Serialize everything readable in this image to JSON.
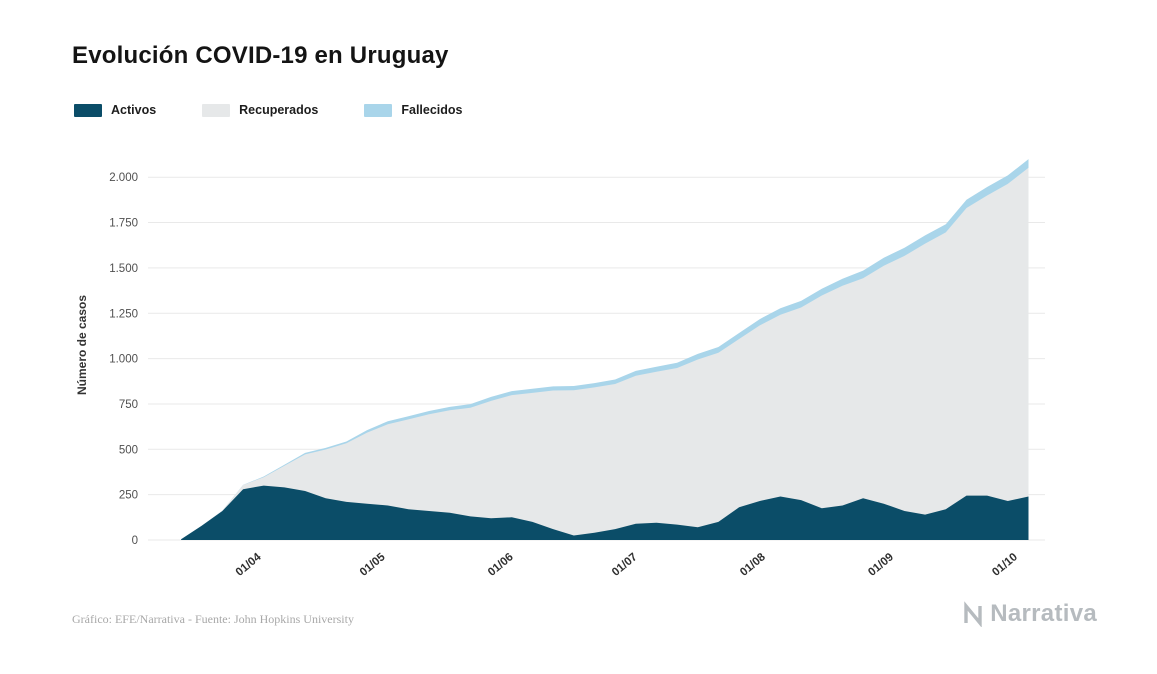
{
  "title": "Evolución COVID-19 en Uruguay",
  "footer": {
    "credit": "Gráfico: EFE/Narrativa - Fuente: John Hopkins University",
    "logo_text": "Narrativa"
  },
  "chart_data": {
    "type": "area",
    "stacked": true,
    "title": "Evolución COVID-19 en Uruguay",
    "xlabel": "",
    "ylabel": "Número de casos",
    "legend_position": "top-left",
    "grid": "horizontal",
    "y_max": 2150,
    "x_domain": [
      "2020-03-05",
      "2020-10-08"
    ],
    "y_ticks": [
      {
        "value": 0,
        "label": "0"
      },
      {
        "value": 250,
        "label": "250"
      },
      {
        "value": 500,
        "label": "500"
      },
      {
        "value": 750,
        "label": "750"
      },
      {
        "value": 1000,
        "label": "1.000"
      },
      {
        "value": 1250,
        "label": "1.250"
      },
      {
        "value": 1500,
        "label": "1.500"
      },
      {
        "value": 1750,
        "label": "1.750"
      },
      {
        "value": 2000,
        "label": "2.000"
      }
    ],
    "x_ticks": [
      {
        "date": "2020-04-01",
        "label": "01/04"
      },
      {
        "date": "2020-05-01",
        "label": "01/05"
      },
      {
        "date": "2020-06-01",
        "label": "01/06"
      },
      {
        "date": "2020-07-01",
        "label": "01/07"
      },
      {
        "date": "2020-08-01",
        "label": "01/08"
      },
      {
        "date": "2020-09-01",
        "label": "01/09"
      },
      {
        "date": "2020-10-01",
        "label": "01/10"
      }
    ],
    "dates": [
      "2020-03-13",
      "2020-03-18",
      "2020-03-23",
      "2020-03-28",
      "2020-04-02",
      "2020-04-07",
      "2020-04-12",
      "2020-04-17",
      "2020-04-22",
      "2020-04-27",
      "2020-05-02",
      "2020-05-07",
      "2020-05-12",
      "2020-05-17",
      "2020-05-22",
      "2020-05-27",
      "2020-06-01",
      "2020-06-06",
      "2020-06-11",
      "2020-06-16",
      "2020-06-21",
      "2020-06-26",
      "2020-07-01",
      "2020-07-06",
      "2020-07-11",
      "2020-07-16",
      "2020-07-21",
      "2020-07-26",
      "2020-07-31",
      "2020-08-05",
      "2020-08-10",
      "2020-08-15",
      "2020-08-20",
      "2020-08-25",
      "2020-08-30",
      "2020-09-04",
      "2020-09-09",
      "2020-09-14",
      "2020-09-19",
      "2020-09-24",
      "2020-09-29",
      "2020-10-04"
    ],
    "series": [
      {
        "name": "Activos",
        "color": "#0b4d68",
        "values": [
          4,
          79,
          160,
          280,
          300,
          290,
          270,
          230,
          210,
          200,
          190,
          170,
          160,
          150,
          130,
          120,
          125,
          100,
          60,
          25,
          40,
          60,
          90,
          95,
          85,
          70,
          100,
          180,
          215,
          240,
          220,
          175,
          190,
          230,
          200,
          160,
          140,
          170,
          245,
          245,
          215,
          240
        ]
      },
      {
        "name": "Recuperados",
        "color": "#e6e8e9",
        "values": [
          0,
          0,
          2,
          23,
          46,
          119,
          202,
          269,
          323,
          392,
          448,
          495,
          533,
          565,
          599,
          647,
          674,
          711,
          764,
          801,
          801,
          800,
          815,
          832,
          863,
          925,
          932,
          928,
          968,
          1002,
          1062,
          1173,
          1212,
          1213,
          1312,
          1406,
          1494,
          1526,
          1585,
          1654,
          1748,
          1812
        ]
      },
      {
        "name": "Fallecidos",
        "color": "#a9d5ea",
        "values": [
          0,
          0,
          0,
          1,
          4,
          6,
          8,
          9,
          10,
          14,
          17,
          17,
          18,
          19,
          20,
          22,
          22,
          23,
          23,
          23,
          24,
          25,
          27,
          28,
          29,
          31,
          32,
          33,
          35,
          36,
          36,
          37,
          38,
          42,
          44,
          45,
          45,
          45,
          46,
          47,
          47,
          48
        ]
      }
    ],
    "colors": {
      "grid": "#e9e9e9",
      "activos": "#0b4d68",
      "recuperados": "#e6e8e9",
      "fallecidos": "#a9d5ea"
    }
  }
}
